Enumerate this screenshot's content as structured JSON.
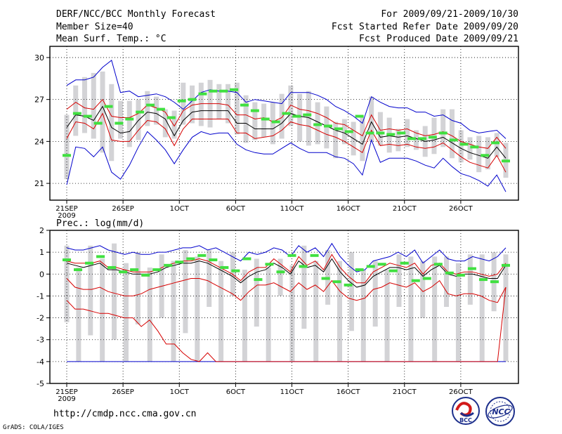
{
  "header": {
    "title": "DERF/NCC/BCC Monthly Forecast",
    "member_size": "Member Size=40",
    "variable": "Mean Surf. Temp.: °C",
    "period": "For 2009/09/21-2009/10/30",
    "started": "Fcst Started Refer Date 2009/09/20",
    "produced": "Fcst Produced Date 2009/09/21"
  },
  "footer": {
    "url": "http://cmdp.ncc.cma.gov.cn",
    "grads": "GrADS: COLA/IGES",
    "logo_bcc": "BCC",
    "logo_ncc": "NCC"
  },
  "colors": {
    "envelope": "#0000cc",
    "spread": "#d60000",
    "mean": "#000000",
    "member_bar": "#d3d3d6",
    "marker": "#40e040"
  },
  "chart_data": [
    {
      "type": "line",
      "title": "Mean Surf. Temp.: °C",
      "ylim": [
        19.8,
        30.8
      ],
      "yticks": [
        21,
        24,
        27,
        30
      ],
      "xlabels": [
        "21SEP",
        "26SEP",
        "1OCT",
        "6OCT",
        "11OCT",
        "16OCT",
        "21OCT",
        "26OCT"
      ],
      "xlabel_days": [
        1,
        6,
        11,
        16,
        21,
        26,
        31,
        36
      ],
      "year_label": "2009",
      "days": 40,
      "grid": true,
      "max": [
        28.0,
        28.4,
        28.4,
        28.6,
        29.3,
        29.8,
        27.5,
        27.6,
        27.2,
        27.3,
        27.4,
        27.2,
        26.8,
        26.3,
        26.9,
        27.5,
        27.7,
        27.6,
        27.6,
        27.5,
        26.8,
        27.0,
        26.9,
        26.8,
        26.7,
        27.5,
        27.5,
        27.5,
        27.3,
        27.0,
        26.5,
        26.2,
        25.8,
        25.3,
        27.2,
        26.8,
        26.5,
        26.4,
        26.4,
        26.1,
        26.1,
        25.8,
        25.9,
        25.5,
        25.3,
        24.8,
        24.6,
        24.7,
        24.8,
        24.2
      ],
      "upper": [
        26.3,
        26.8,
        26.4,
        26.3,
        27.0,
        25.8,
        25.7,
        25.7,
        26.0,
        26.6,
        26.4,
        26.1,
        25.1,
        26.2,
        26.6,
        26.7,
        26.7,
        26.7,
        26.6,
        25.9,
        25.9,
        25.6,
        25.7,
        25.4,
        25.7,
        26.6,
        26.3,
        26.2,
        26.0,
        25.7,
        25.3,
        25.2,
        24.8,
        24.4,
        25.9,
        24.8,
        24.9,
        24.8,
        24.9,
        24.6,
        24.4,
        24.5,
        24.7,
        24.4,
        24.0,
        23.8,
        23.6,
        23.5,
        24.3,
        23.5
      ],
      "mean": [
        25.0,
        25.9,
        25.8,
        25.5,
        26.5,
        25.0,
        24.6,
        24.7,
        25.5,
        26.1,
        26.0,
        25.6,
        24.4,
        25.5,
        26.1,
        26.2,
        26.2,
        26.2,
        26.2,
        25.3,
        25.3,
        24.9,
        24.9,
        24.9,
        25.3,
        26.0,
        25.8,
        25.7,
        25.4,
        25.1,
        24.8,
        24.6,
        24.2,
        23.8,
        25.4,
        24.3,
        24.4,
        24.3,
        24.4,
        24.2,
        24.0,
        24.1,
        24.3,
        23.9,
        23.5,
        23.2,
        23.0,
        22.8,
        23.6,
        22.8
      ],
      "lower": [
        24.2,
        25.4,
        25.3,
        24.9,
        26.0,
        24.1,
        24.0,
        24.0,
        24.8,
        25.5,
        25.4,
        24.9,
        23.7,
        24.9,
        25.6,
        25.6,
        25.6,
        25.6,
        25.6,
        24.6,
        24.6,
        24.2,
        24.3,
        24.4,
        24.8,
        25.4,
        25.2,
        25.1,
        24.8,
        24.5,
        24.3,
        24.0,
        23.6,
        23.2,
        24.8,
        23.7,
        23.8,
        23.7,
        23.8,
        23.6,
        23.5,
        23.6,
        23.9,
        23.4,
        22.9,
        22.5,
        22.3,
        22.1,
        23.0,
        21.8
      ],
      "min": [
        20.9,
        23.6,
        23.5,
        22.9,
        23.6,
        21.8,
        21.3,
        22.3,
        23.6,
        24.7,
        24.1,
        23.4,
        22.4,
        23.4,
        24.3,
        24.7,
        24.5,
        24.6,
        24.6,
        23.8,
        23.4,
        23.2,
        23.1,
        23.1,
        23.5,
        23.9,
        23.5,
        23.2,
        23.2,
        23.2,
        22.9,
        22.8,
        22.4,
        21.6,
        24.1,
        22.5,
        22.8,
        22.8,
        22.8,
        22.6,
        22.3,
        22.1,
        22.8,
        22.2,
        21.7,
        21.5,
        21.2,
        20.8,
        21.6,
        20.4
      ],
      "bar_low": [
        21.3,
        24.4,
        24.6,
        24.2,
        23.2,
        22.6,
        24.2,
        23.6,
        24.1,
        25.1,
        25.2,
        24.3,
        24.2,
        25.2,
        25.3,
        25.1,
        25.0,
        25.6,
        25.3,
        24.5,
        23.9,
        24.1,
        24.3,
        23.8,
        24.2,
        25.1,
        24.0,
        23.7,
        23.8,
        23.5,
        22.8,
        23.8,
        23.0,
        22.6,
        24.0,
        23.7,
        23.2,
        23.3,
        23.6,
        23.4,
        22.9,
        23.1,
        23.6,
        22.8,
        22.5,
        22.7,
        21.8,
        22.0,
        22.9,
        21.4
      ],
      "bar_high": [
        25.9,
        28.0,
        28.6,
        28.9,
        29.0,
        28.1,
        26.9,
        26.9,
        27.0,
        27.6,
        27.2,
        26.3,
        26.2,
        28.2,
        28.0,
        28.2,
        28.4,
        28.1,
        28.1,
        28.2,
        27.3,
        26.8,
        26.7,
        26.8,
        27.4,
        28.0,
        27.4,
        27.6,
        26.8,
        26.5,
        25.4,
        25.6,
        25.4,
        25.7,
        27.2,
        26.1,
        25.7,
        24.9,
        25.6,
        24.8,
        25.1,
        25.7,
        26.3,
        26.3,
        24.8,
        24.3,
        24.4,
        24.3,
        24.6,
        23.9
      ],
      "marker": [
        23.0,
        26.0,
        25.8,
        25.3,
        26.5,
        25.3,
        25.6,
        26.1,
        26.6,
        26.3,
        25.7,
        26.9,
        27.0,
        27.4,
        27.6,
        27.6,
        27.7,
        26.6,
        26.2,
        25.6,
        25.4,
        26.0,
        25.8,
        25.9,
        25.2,
        25.1,
        24.9,
        24.7,
        25.8,
        24.6,
        24.6,
        24.5,
        24.6,
        24.2,
        24.2,
        24.3,
        24.6,
        24.1,
        23.8,
        23.6,
        23.0,
        23.9,
        22.6
      ]
    },
    {
      "type": "line",
      "title": "Prec.: log(mm/d)",
      "ylim": [
        -5,
        2
      ],
      "yticks": [
        -5,
        -4,
        -3,
        -2,
        -1,
        0,
        1,
        2
      ],
      "xlabels": [
        "21SEP",
        "26SEP",
        "1OCT",
        "6OCT",
        "11OCT",
        "16OCT",
        "21OCT",
        "26OCT"
      ],
      "xlabel_days": [
        1,
        6,
        11,
        16,
        21,
        26,
        31,
        36
      ],
      "year_label": "2009",
      "days": 40,
      "grid": true,
      "max": [
        1.2,
        1.1,
        1.1,
        1.2,
        1.3,
        1.1,
        1.0,
        0.9,
        1.0,
        0.9,
        0.9,
        1.0,
        1.0,
        1.1,
        1.2,
        1.2,
        1.3,
        1.1,
        1.2,
        1.0,
        0.8,
        0.6,
        1.0,
        0.9,
        1.0,
        1.2,
        1.1,
        0.8,
        1.3,
        1.0,
        1.2,
        0.8,
        1.4,
        0.8,
        0.4,
        0.1,
        0.2,
        0.6,
        0.7,
        0.8,
        1.0,
        0.8,
        1.1,
        0.5,
        0.8,
        1.1,
        0.7,
        0.6,
        0.6,
        0.8,
        0.7,
        0.6,
        0.8,
        1.2
      ],
      "upper": [
        0.6,
        0.5,
        0.5,
        0.5,
        0.6,
        0.3,
        0.3,
        0.2,
        0.1,
        0.1,
        0.1,
        0.2,
        0.4,
        0.5,
        0.6,
        0.6,
        0.7,
        0.6,
        0.4,
        0.2,
        0.0,
        -0.3,
        0.1,
        0.3,
        0.3,
        0.7,
        0.4,
        0.1,
        0.8,
        0.4,
        0.6,
        0.2,
        0.9,
        0.3,
        -0.1,
        -0.4,
        -0.4,
        0.1,
        0.3,
        0.5,
        0.4,
        0.3,
        0.5,
        0.0,
        0.4,
        0.5,
        0.1,
        0.0,
        0.1,
        0.1,
        0.0,
        -0.1,
        0.0,
        0.5
      ],
      "mean": [
        0.5,
        0.4,
        0.3,
        0.4,
        0.5,
        0.2,
        0.2,
        0.1,
        0.0,
        0.0,
        0.0,
        0.1,
        0.3,
        0.4,
        0.5,
        0.5,
        0.6,
        0.5,
        0.3,
        0.1,
        -0.1,
        -0.4,
        -0.1,
        0.1,
        0.2,
        0.5,
        0.3,
        0.0,
        0.6,
        0.3,
        0.4,
        0.1,
        0.7,
        0.1,
        -0.3,
        -0.6,
        -0.5,
        -0.1,
        0.1,
        0.3,
        0.3,
        0.2,
        0.3,
        -0.1,
        0.2,
        0.4,
        0.0,
        -0.1,
        0.0,
        0.0,
        -0.1,
        -0.2,
        -0.2,
        0.4
      ],
      "lower": [
        -1.2,
        -1.6,
        -1.6,
        -1.7,
        -1.8,
        -1.8,
        -1.9,
        -2.0,
        -2.0,
        -2.4,
        -2.1,
        -2.6,
        -3.2,
        -3.2,
        -3.6,
        -3.9,
        -4.0,
        -3.6,
        -4.0,
        -4.0,
        -4.0,
        -4.0,
        -4.0,
        -4.0,
        -4.0,
        -4.0,
        -4.0,
        -4.0,
        -4.0,
        -4.0,
        -4.0,
        -4.0,
        -4.0,
        -4.0,
        -4.0,
        -4.0,
        -4.0,
        -4.0,
        -4.0,
        -4.0,
        -4.0,
        -4.0,
        -4.0,
        -4.0,
        -4.0,
        -4.0,
        -4.0,
        -4.0,
        -4.0,
        -4.0,
        -4.0,
        -4.0,
        -4.0,
        -0.6
      ],
      "spread_low": [
        -0.2,
        -0.6,
        -0.7,
        -0.7,
        -0.6,
        -0.8,
        -0.9,
        -1.0,
        -1.0,
        -0.9,
        -0.7,
        -0.6,
        -0.5,
        -0.4,
        -0.3,
        -0.2,
        -0.2,
        -0.3,
        -0.5,
        -0.7,
        -0.9,
        -1.2,
        -0.8,
        -0.5,
        -0.5,
        -0.4,
        -0.6,
        -0.8,
        -0.4,
        -0.7,
        -0.5,
        -0.8,
        -0.3,
        -0.8,
        -1.1,
        -1.2,
        -1.1,
        -0.7,
        -0.6,
        -0.4,
        -0.5,
        -0.6,
        -0.4,
        -0.8,
        -0.6,
        -0.3,
        -0.9,
        -1.0,
        -0.9,
        -0.9,
        -1.0,
        -1.2,
        -1.3,
        -0.6
      ],
      "min": [
        -4.0,
        -4.0,
        -4.0,
        -4.0,
        -4.0,
        -4.0,
        -4.0,
        -4.0,
        -4.0,
        -4.0,
        -4.0,
        -4.0,
        -4.0,
        -4.0,
        -4.0,
        -4.0,
        -4.0,
        -4.0,
        -4.0,
        -4.0,
        -4.0,
        -4.0,
        -4.0,
        -4.0,
        -4.0,
        -4.0,
        -4.0,
        -4.0,
        -4.0,
        -4.0,
        -4.0,
        -4.0,
        -4.0,
        -4.0,
        -4.0,
        -4.0,
        -4.0,
        -4.0,
        -4.0,
        -4.0,
        -4.0,
        -4.0,
        -4.0,
        -4.0,
        -4.0,
        -4.0,
        -4.0,
        -4.0,
        -4.0,
        -4.0,
        -4.0,
        -4.0,
        -4.0,
        -4.0
      ],
      "bar_low": [
        -2.2,
        -4.0,
        -2.8,
        -4.0,
        -3.0,
        -4.0,
        -2.3,
        -4.0,
        -2.0,
        -4.0,
        -2.7,
        -4.0,
        -1.5,
        -4.0,
        -1.0,
        -4.0,
        -2.4,
        -4.0,
        -1.0,
        -4.0,
        -2.5,
        -4.0,
        -1.4,
        -4.0,
        -2.6,
        -4.0,
        -2.4,
        -4.0,
        -1.5,
        -4.0,
        -2.0,
        -4.0,
        -1.5,
        -4.0,
        -1.4,
        -4.0,
        -1.7,
        -4.0
      ],
      "bar_high": [
        1.3,
        0.3,
        1.3,
        0.7,
        1.4,
        0.5,
        1.0,
        0.3,
        0.9,
        0.6,
        1.1,
        0.8,
        1.1,
        0.6,
        1.0,
        0.2,
        0.7,
        0.3,
        0.7,
        0.4,
        1.3,
        0.6,
        1.1,
        0.6,
        1.0,
        0.2,
        0.6,
        0.2,
        0.9,
        0.8,
        0.6,
        0.8,
        0.8,
        0.5,
        0.9,
        0.9,
        1.0,
        0.9
      ],
      "marker": [
        0.65,
        0.2,
        0.5,
        0.8,
        0.3,
        0.1,
        0.2,
        -0.05,
        0.2,
        0.4,
        0.55,
        0.7,
        0.85,
        0.65,
        0.3,
        0.15,
        0.7,
        -0.25,
        0.45,
        0.1,
        0.85,
        0.35,
        0.85,
        -0.2,
        -0.35,
        -0.5,
        0.2,
        0.35,
        0.45,
        0.15,
        0.5,
        -0.3,
        -0.2,
        0.45,
        0.05,
        -0.05,
        0.25,
        -0.25,
        -0.35,
        0.4
      ]
    }
  ]
}
